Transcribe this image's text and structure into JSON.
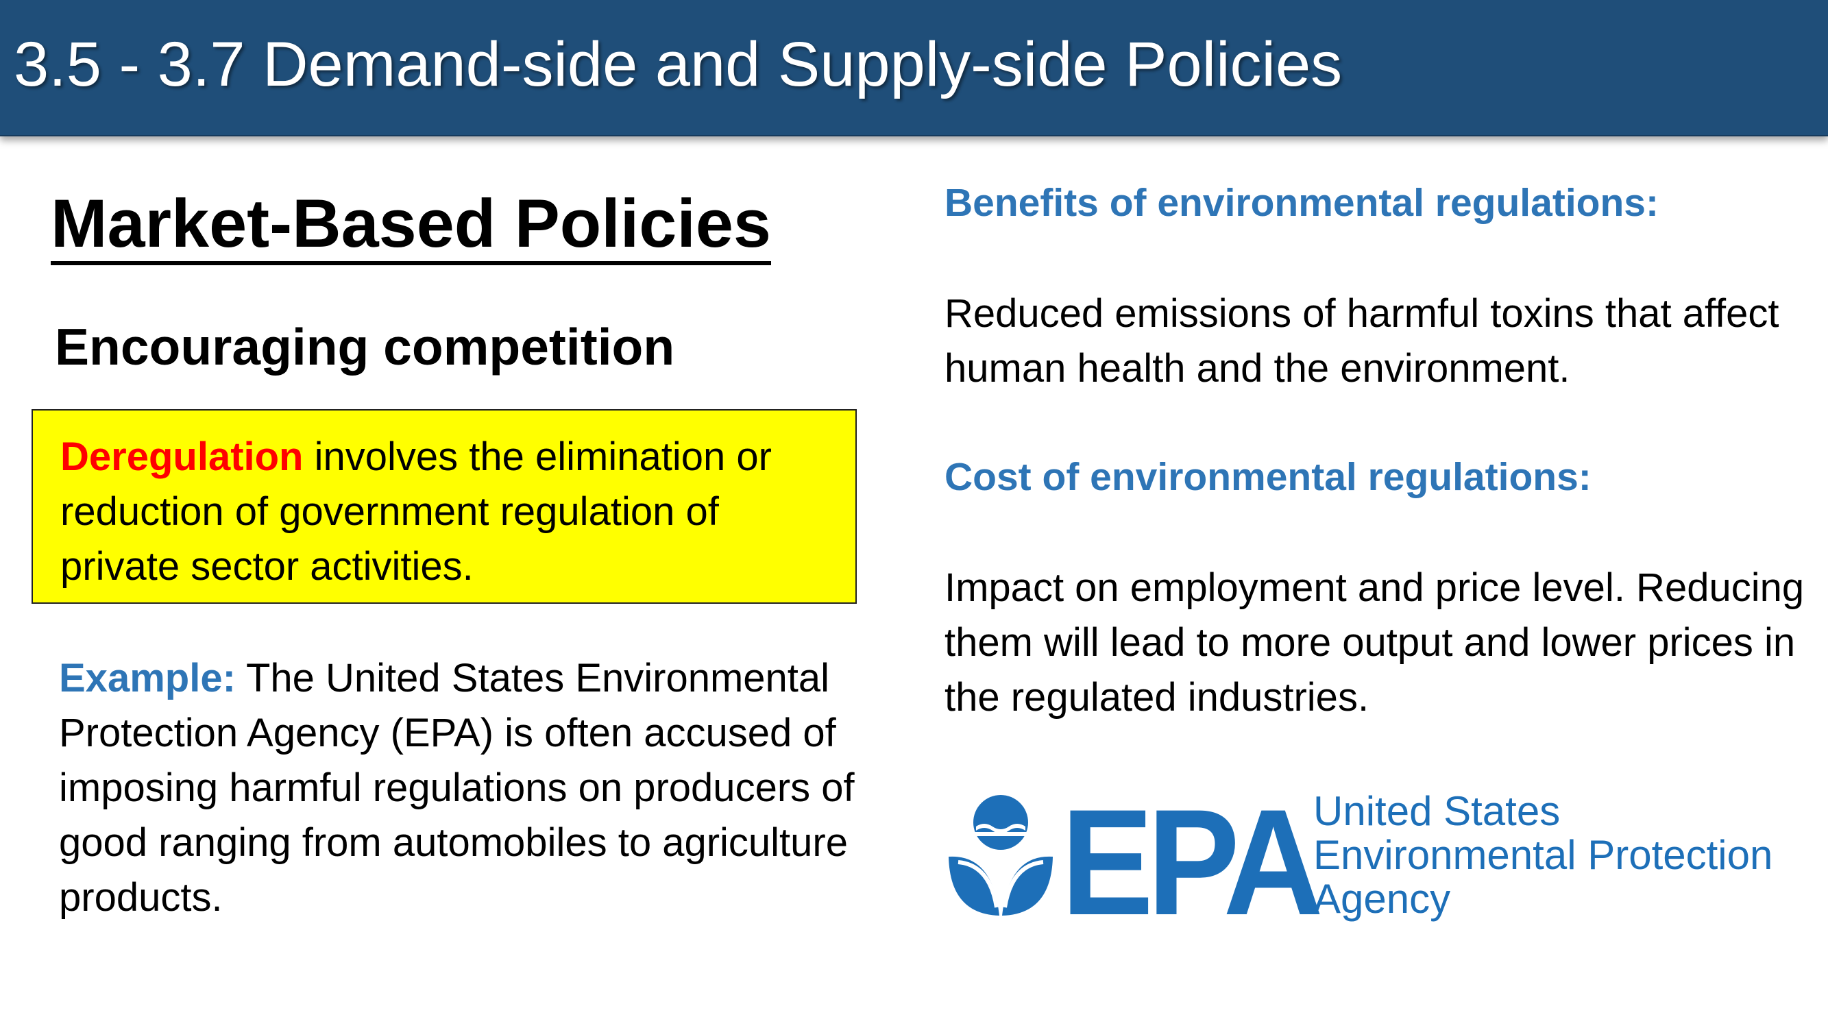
{
  "title": "3.5 - 3.7 Demand-side and Supply-side Policies",
  "left": {
    "heading": "Market-Based Policies",
    "subheading": "Encouraging competition",
    "definition": {
      "term": "Deregulation",
      "text": " involves the elimination or reduction of government regulation of private sector activities."
    },
    "example": {
      "label": "Example:",
      "text": " The United States Environmental Protection Agency (EPA) is often accused of imposing harmful regulations on producers of good ranging from automobiles to agriculture products."
    }
  },
  "right": {
    "benefits_heading": "Benefits of environmental regulations:",
    "benefits_text": "Reduced emissions of harmful toxins that affect human health and the environment.",
    "cost_heading": "Cost of environmental regulations:",
    "cost_text": "Impact on employment and price level. Reducing them will lead to more output and lower prices in the regulated industries."
  },
  "logo": {
    "wordmark": "EPA",
    "line1": "United States",
    "line2": "Environmental Protection",
    "line3": "Agency",
    "color": "#1d6fb8"
  },
  "colors": {
    "title_bar": "#1f4e79",
    "accent_blue": "#2e75b6",
    "highlight_yellow": "#ffff00",
    "term_red": "#ff0000"
  }
}
